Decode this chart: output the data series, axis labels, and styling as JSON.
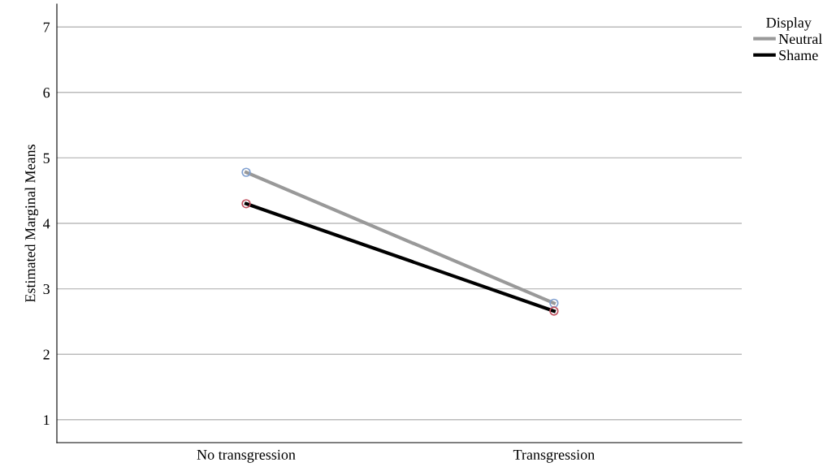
{
  "chart_data": {
    "type": "line",
    "ylabel": "Estimated Marginal Means",
    "legend_title": "Display",
    "categories": [
      "No transgression",
      "Transgression"
    ],
    "series": [
      {
        "name": "Neutral",
        "color": "#999999",
        "colors": [
          "#7f9fd0",
          "#7f9fd0"
        ],
        "values": [
          4.78,
          2.78
        ]
      },
      {
        "name": "Shame",
        "color": "#000000",
        "colors": [
          "#c0505f",
          "#c0505f"
        ],
        "values": [
          4.3,
          2.66
        ]
      }
    ],
    "ylim": [
      0.65,
      7.35
    ],
    "yticks": [
      1,
      2,
      3,
      4,
      5,
      6,
      7
    ],
    "grid": "y",
    "legend": "top right",
    "marker": "circle",
    "line_style": "solid"
  }
}
